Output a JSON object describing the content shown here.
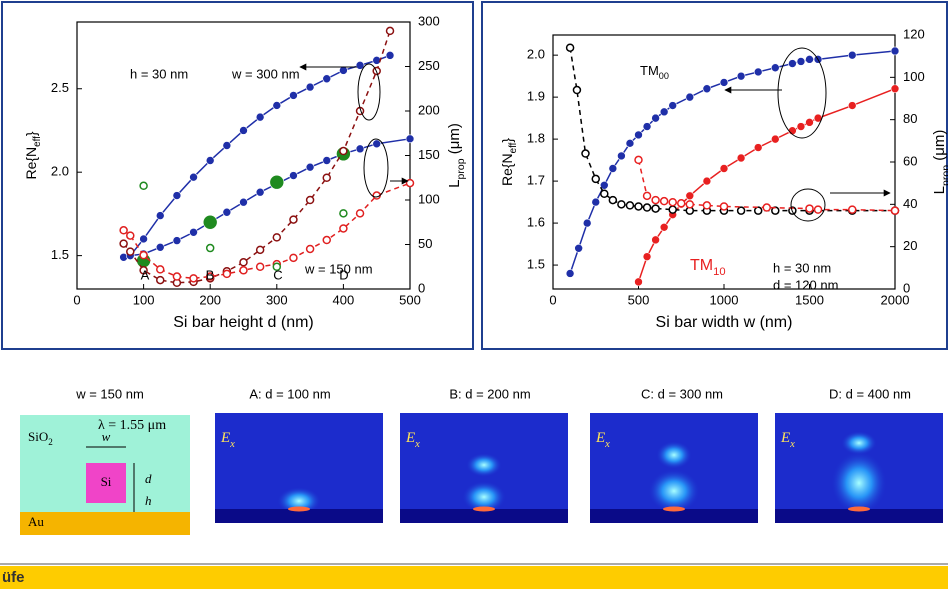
{
  "chart_data": [
    {
      "type": "line",
      "xlabel": "Si bar height d (nm)",
      "ylabel": {
        "text": "Re{N",
        "sub": "eff",
        "end": "}"
      },
      "y2label": {
        "text": "L",
        "sub": "prop",
        "end": " (μm)"
      },
      "xlim": [
        0,
        500
      ],
      "xticks": [
        0,
        100,
        200,
        300,
        400,
        500
      ],
      "ylim": [
        1.3,
        2.9
      ],
      "yticks": [
        1.5,
        {
          "value": 2,
          "label": "2.0"
        },
        2.5
      ],
      "y2lim": [
        0,
        300
      ],
      "y2ticks": [
        0,
        50,
        100,
        150,
        200,
        250,
        300
      ],
      "series": [
        {
          "color": "#1f2fa8",
          "line": "solid",
          "marker": "filled",
          "x": [
            70,
            80,
            100,
            125,
            150,
            175,
            200,
            225,
            250,
            275,
            300,
            325,
            350,
            375,
            400,
            425,
            450,
            470
          ],
          "values": [
            1.49,
            1.5,
            1.6,
            1.74,
            1.86,
            1.97,
            2.07,
            2.16,
            2.25,
            2.33,
            2.4,
            2.46,
            2.51,
            2.56,
            2.61,
            2.64,
            2.67,
            2.7
          ]
        },
        {
          "color": "#1f2fa8",
          "line": "solid",
          "marker": "filled",
          "x": [
            70,
            80,
            100,
            125,
            150,
            175,
            200,
            225,
            250,
            275,
            300,
            325,
            350,
            375,
            400,
            425,
            450,
            500
          ],
          "values": [
            1.49,
            1.5,
            1.51,
            1.55,
            1.59,
            1.64,
            1.7,
            1.76,
            1.82,
            1.88,
            1.93,
            1.98,
            2.03,
            2.07,
            2.11,
            2.14,
            2.17,
            2.2
          ]
        },
        {
          "color": "#1f8a1f",
          "line": "none",
          "marker": "large",
          "x": [
            100,
            200,
            300,
            400
          ],
          "values": [
            1.47,
            1.7,
            1.94,
            2.11
          ]
        },
        {
          "color": "#8b1010",
          "line": "dashed",
          "marker": "open",
          "axis": "y2",
          "x": [
            70,
            80,
            100,
            125,
            150,
            175,
            200,
            225,
            250,
            275,
            300,
            325,
            350,
            375,
            400,
            425,
            450,
            470
          ],
          "values": [
            51,
            42,
            21,
            10,
            7,
            8,
            12,
            20,
            30,
            44,
            58,
            78,
            100,
            125,
            155,
            200,
            245,
            290
          ]
        },
        {
          "color": "#e02020",
          "line": "dashed",
          "marker": "open",
          "axis": "y2",
          "x": [
            70,
            80,
            100,
            125,
            150,
            175,
            200,
            225,
            250,
            275,
            300,
            325,
            350,
            375,
            400,
            425,
            450,
            500
          ],
          "values": [
            66,
            60,
            38,
            22,
            14,
            12,
            14,
            17,
            21,
            25,
            28,
            35,
            45,
            55,
            68,
            85,
            105,
            119
          ]
        },
        {
          "color": "#1f8a1f",
          "line": "none",
          "marker": "open",
          "axis": "y2",
          "x": [
            100,
            200,
            300,
            400
          ],
          "values": [
            116,
            46,
            25,
            85
          ]
        }
      ],
      "annotations": [
        "h = 30 nm",
        "w = 300 nm",
        "w = 150 nm",
        "A",
        "B",
        "C",
        "D"
      ]
    },
    {
      "type": "line",
      "xlabel": "Si bar width w (nm)",
      "ylabel": {
        "text": "Re{N",
        "sub": "eff",
        "end": "}"
      },
      "y2label": {
        "text": "L",
        "sub": "prop",
        "end": " (μm)"
      },
      "xlim": [
        0,
        2000
      ],
      "xticks": [
        0,
        500,
        1000,
        1500,
        2000
      ],
      "ylim": [
        1.443,
        2.048
      ],
      "yticks": [
        1.5,
        1.6,
        1.7,
        1.8,
        1.9,
        {
          "value": 2,
          "label": "2.0"
        }
      ],
      "y2lim": [
        0,
        120
      ],
      "y2ticks": [
        0,
        20,
        40,
        60,
        80,
        100,
        120
      ],
      "series": [
        {
          "color": "#1f2fa8",
          "line": "solid",
          "marker": "filled",
          "x": [
            100,
            150,
            200,
            250,
            300,
            350,
            400,
            450,
            500,
            550,
            600,
            650,
            700,
            800,
            900,
            1000,
            1100,
            1200,
            1300,
            1400,
            1450,
            1500,
            1550,
            1750,
            2000
          ],
          "values": [
            1.48,
            1.54,
            1.6,
            1.65,
            1.69,
            1.73,
            1.76,
            1.79,
            1.81,
            1.83,
            1.85,
            1.865,
            1.88,
            1.9,
            1.92,
            1.935,
            1.95,
            1.96,
            1.97,
            1.98,
            1.985,
            1.99,
            1.99,
            2.0,
            2.01
          ]
        },
        {
          "color": "#e82020",
          "line": "solid",
          "marker": "filled",
          "x": [
            500,
            550,
            600,
            650,
            700,
            750,
            800,
            900,
            1000,
            1100,
            1200,
            1300,
            1400,
            1450,
            1500,
            1550,
            1750,
            2000
          ],
          "values": [
            1.46,
            1.52,
            1.56,
            1.59,
            1.62,
            1.645,
            1.665,
            1.7,
            1.73,
            1.755,
            1.78,
            1.8,
            1.82,
            1.83,
            1.84,
            1.85,
            1.88,
            1.92
          ]
        },
        {
          "color": "#000000",
          "line": "dashed",
          "marker": "open",
          "axis": "y2",
          "x": [
            100,
            140,
            190,
            250,
            300,
            350,
            400,
            450,
            500,
            550,
            600,
            700,
            800,
            900,
            1000,
            1100,
            1200,
            1300,
            1400,
            1500,
            1750,
            2000
          ],
          "values": [
            114,
            94,
            64,
            52,
            45,
            42,
            40,
            39.5,
            39,
            38.5,
            38,
            37.5,
            37,
            37,
            37,
            37,
            37,
            37,
            37,
            37,
            37,
            37
          ]
        },
        {
          "color": "#e82020",
          "line": "dashed",
          "marker": "open",
          "axis": "y2",
          "x": [
            500,
            550,
            600,
            650,
            700,
            750,
            800,
            900,
            1000,
            1250,
            1500,
            1550,
            1750,
            2000
          ],
          "values": [
            61,
            44,
            42,
            41.5,
            41,
            40.5,
            40,
            39.5,
            39,
            38.5,
            38,
            37.5,
            37.5,
            37
          ]
        }
      ],
      "annotations": [
        {
          "text": "TM",
          "sub": "00"
        },
        {
          "text": "TM",
          "sub": "10"
        },
        "h = 30 nm",
        "d = 120  nm"
      ]
    }
  ],
  "captions": [
    "w = 150 nm",
    "A: d = 100 nm",
    "B: d = 200 nm",
    "C: d = 300 nm",
    "D: d = 400 nm"
  ],
  "diagram": {
    "cladding": {
      "text": "SiO",
      "sub": "2"
    },
    "wavelength": "λ = 1.55 μm",
    "width": "w",
    "height": "d",
    "core": "Si",
    "gap": "h",
    "metal": "Au"
  },
  "field_label": {
    "text": "E",
    "sub": "x"
  },
  "logo": "üfe"
}
